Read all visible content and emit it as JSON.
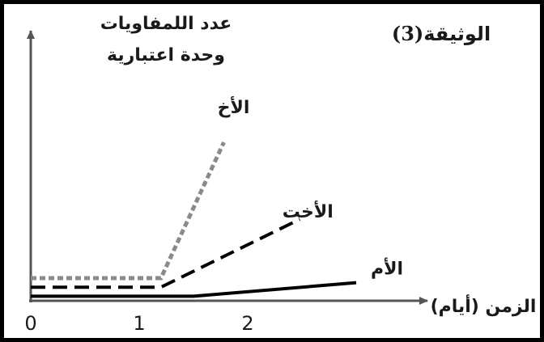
{
  "document": {
    "label": "الوثيقة",
    "number": "(3)"
  },
  "chart_data": {
    "type": "line",
    "ylabel_line1": "عدد اللمفاويات",
    "ylabel_line2": "وحدة اعتبارية",
    "xlabel": "الزمن (أيام)",
    "x_ticks": [
      0,
      1,
      2
    ],
    "xlim": [
      0,
      3.4
    ],
    "ylim": [
      0,
      10
    ],
    "grid": false,
    "legend": "none",
    "series": [
      {
        "name": "الأخ",
        "style": "dotted",
        "color": "#8a8a8a",
        "points": [
          [
            0,
            1.0
          ],
          [
            1.2,
            1.0
          ],
          [
            1.78,
            7.0
          ]
        ]
      },
      {
        "name": "الأخت",
        "style": "dashed",
        "color": "#000000",
        "points": [
          [
            0,
            0.6
          ],
          [
            1.2,
            0.6
          ],
          [
            2.48,
            3.6
          ]
        ]
      },
      {
        "name": "الأم",
        "style": "solid",
        "color": "#000000",
        "points": [
          [
            0,
            0.2
          ],
          [
            1.5,
            0.2
          ],
          [
            3.0,
            0.8
          ]
        ]
      }
    ]
  }
}
